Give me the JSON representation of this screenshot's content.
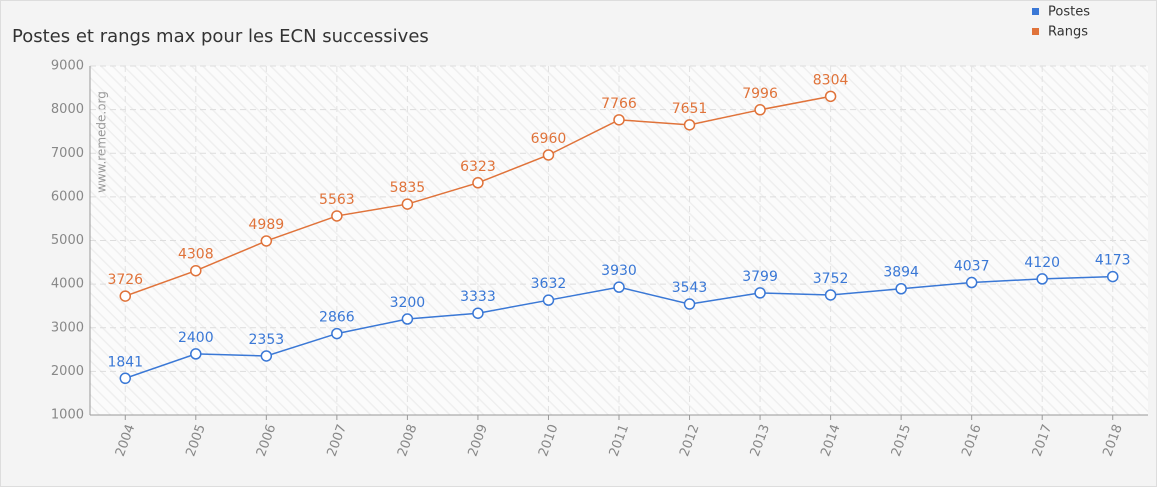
{
  "chart_data": {
    "type": "line",
    "title": "Postes et rangs max pour les ECN successives",
    "annotation": "www.remede.org",
    "categories": [
      "2004",
      "2005",
      "2006",
      "2007",
      "2008",
      "2009",
      "2010",
      "2011",
      "2012",
      "2013",
      "2014",
      "2015",
      "2016",
      "2017",
      "2018"
    ],
    "series": [
      {
        "name": "Postes",
        "color": "#3a78d6",
        "values": [
          1841,
          2400,
          2353,
          2866,
          3200,
          3333,
          3632,
          3930,
          3543,
          3799,
          3752,
          3894,
          4037,
          4120,
          4173
        ]
      },
      {
        "name": "Rangs",
        "color": "#e0733a",
        "values": [
          3726,
          4308,
          4989,
          5563,
          5835,
          6323,
          6960,
          7766,
          7651,
          7996,
          8304,
          null,
          null,
          null,
          null
        ]
      }
    ],
    "ylim": [
      1000,
      9000
    ],
    "yticks": [
      1000,
      2000,
      3000,
      4000,
      5000,
      6000,
      7000,
      8000,
      9000
    ],
    "grid": true,
    "legend": "top-right"
  }
}
